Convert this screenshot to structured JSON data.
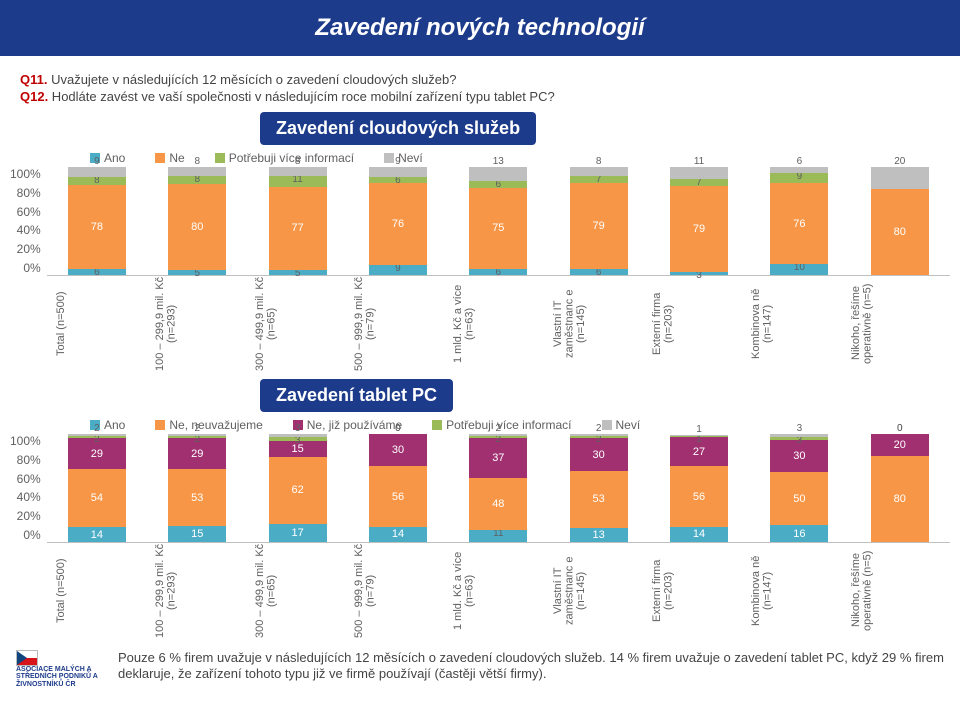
{
  "header": "Zavedení nových technologií",
  "q11_num": "Q11.",
  "q11_text": " Uvažujete v následujících 12 měsících o zavedení cloudových služeb?",
  "q12_num": "Q12.",
  "q12_text": " Hodláte zavést ve vaší společnosti v následujícím roce mobilní zařízení typu tablet PC?",
  "sub1": "Zavedení cloudových služeb",
  "sub2": "Zavedení tablet PC",
  "palette": {
    "ano": "#4bacc6",
    "ne": "#f79646",
    "info": "#9bbb59",
    "nevi": "#bfbfbf",
    "ne_neuv": "#f79646",
    "ne_pouz": "#a03070"
  },
  "categories": [
    "Total (n=500)",
    "100 – 299,9 mil. Kč (n=293)",
    "300 – 499,9 mil. Kč (n=65)",
    "500 – 999,9 mil. Kč (n=79)",
    "1 mld. Kč a více (n=63)",
    "Vlastní IT zaměstnanc e (n=145)",
    "Externí firma (n=203)",
    "Kombinova ně (n=147)",
    "Nikoho, řešíme operativně (n=5)"
  ],
  "yticks": [
    "100%",
    "80%",
    "60%",
    "40%",
    "20%",
    "0%"
  ],
  "chart1": {
    "legend": [
      "Ano",
      "Ne",
      "Potřebuji více informací",
      "Neví"
    ],
    "colors": [
      "#4bacc6",
      "#f79646",
      "#9bbb59",
      "#bfbfbf"
    ],
    "series": [
      {
        "ano": 6,
        "ne": 78,
        "info": 8,
        "nevi": 9
      },
      {
        "ano": 5,
        "ne": 80,
        "info": 8,
        "nevi": 8
      },
      {
        "ano": 5,
        "ne": 77,
        "info": 11,
        "nevi": 8
      },
      {
        "ano": 9,
        "ne": 76,
        "info": 6,
        "nevi": 9
      },
      {
        "ano": 6,
        "ne": 75,
        "info": 6,
        "nevi": 13
      },
      {
        "ano": 6,
        "ne": 79,
        "info": 7,
        "nevi": 8
      },
      {
        "ano": 3,
        "ne": 79,
        "info": 7,
        "nevi": 11
      },
      {
        "ano": 10,
        "ne": 76,
        "info": 9,
        "nevi": 6
      },
      {
        "ano": 0,
        "ne": 80,
        "info": 0,
        "nevi": 20
      }
    ]
  },
  "chart2": {
    "legend": [
      "Ano",
      "Ne, neuvažujeme",
      "Ne, již používáme",
      "Potřebuji více informací",
      "Neví"
    ],
    "colors": [
      "#4bacc6",
      "#f79646",
      "#a03070",
      "#9bbb59",
      "#bfbfbf"
    ],
    "series": [
      {
        "ano": 14,
        "neu": 54,
        "pouz": 29,
        "info": 2,
        "nevi": 2
      },
      {
        "ano": 15,
        "neu": 53,
        "pouz": 29,
        "info": 2,
        "nevi": 2
      },
      {
        "ano": 17,
        "neu": 62,
        "pouz": 15,
        "info": 3,
        "nevi": 3
      },
      {
        "ano": 14,
        "neu": 56,
        "pouz": 30,
        "info": 0,
        "nevi": 0
      },
      {
        "ano": 11,
        "neu": 48,
        "pouz": 37,
        "info": 2,
        "nevi": 2
      },
      {
        "ano": 13,
        "neu": 53,
        "pouz": 30,
        "info": 2,
        "nevi": 2
      },
      {
        "ano": 14,
        "neu": 56,
        "pouz": 27,
        "info": 1,
        "nevi": 1
      },
      {
        "ano": 16,
        "neu": 50,
        "pouz": 30,
        "info": 3,
        "nevi": 3
      },
      {
        "ano": 0,
        "neu": 80,
        "pouz": 20,
        "info": 0,
        "nevi": 0
      }
    ]
  },
  "logo_text": "ASOCIACE MALÝCH A STŘEDNÍCH PODNIKŮ A ŽIVNOSTNÍKŮ ČR",
  "footer_text": "Pouze 6 % firem uvažuje v následujících 12 měsících o zavedení cloudových služeb. 14 % firem uvažuje o zavedení tablet PC, když 29 % firem deklaruje, že zařízení tohoto typu již ve firmě používají (častěji větší firmy)."
}
